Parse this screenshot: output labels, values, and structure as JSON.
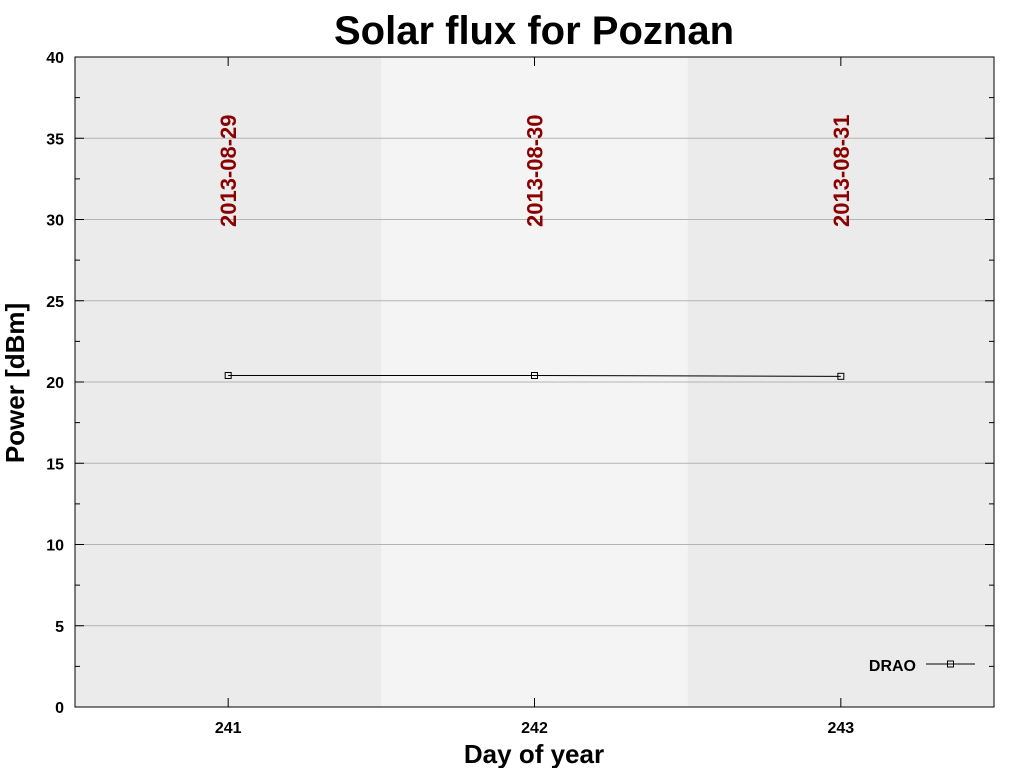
{
  "chart_data": {
    "type": "line",
    "title": "Solar flux for Poznan",
    "xlabel": "Day of year",
    "ylabel": "Power [dBm]",
    "xlim": [
      240.5,
      243.5
    ],
    "ylim": [
      0,
      40
    ],
    "x_ticks": [
      241,
      242,
      243
    ],
    "y_ticks": [
      0,
      5,
      10,
      15,
      20,
      25,
      30,
      35,
      40
    ],
    "grid": true,
    "legend_position": "bottom-right",
    "day_bands": [
      {
        "day": 241,
        "date": "2013-08-29",
        "color": "#ebebeb"
      },
      {
        "day": 242,
        "date": "2013-08-30",
        "color": "#f4f4f4"
      },
      {
        "day": 243,
        "date": "2013-08-31",
        "color": "#ebebeb"
      }
    ],
    "date_label_color": "#8b0000",
    "date_label_y": 33,
    "series": [
      {
        "name": "DRAO",
        "color": "#000000",
        "marker": "square",
        "x": [
          241,
          242,
          243
        ],
        "y": [
          20.4,
          20.4,
          20.35
        ]
      }
    ]
  }
}
